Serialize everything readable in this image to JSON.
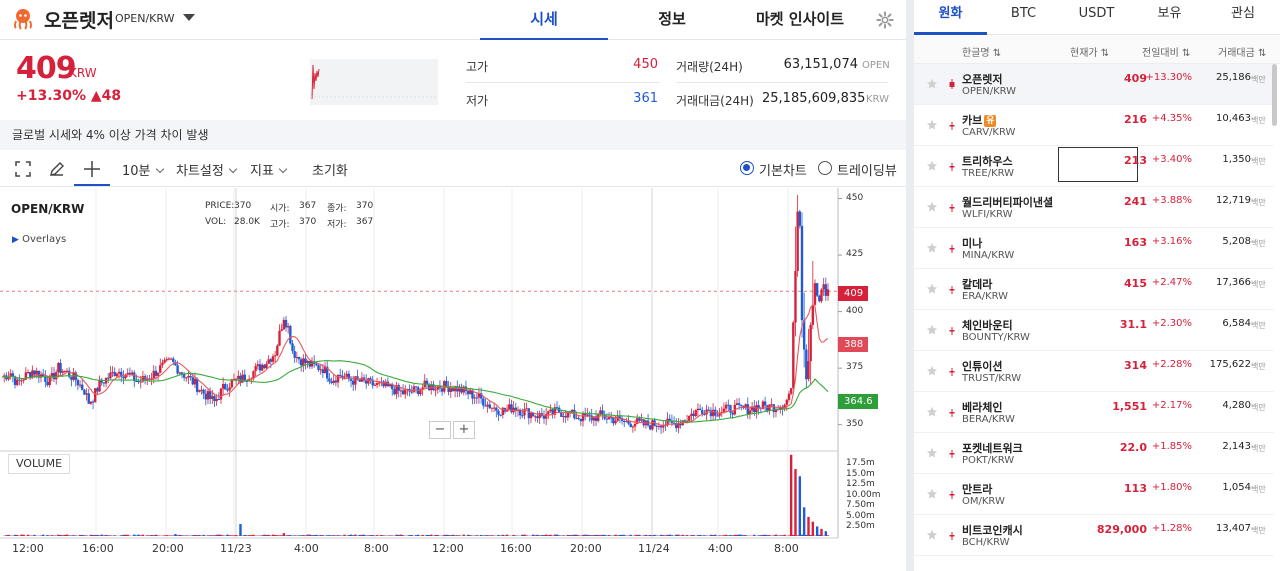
{
  "header": {
    "coin_name": "오픈렛저",
    "coin_pair": "OPEN/KRW",
    "tabs": [
      "시세",
      "정보",
      "마켓 인사이트"
    ],
    "active_tab": "시세"
  },
  "price": {
    "current": "409",
    "unit": "KRW",
    "change": "+13.30% ▲48"
  },
  "stats": {
    "high_label": "고가",
    "high_value": "450",
    "low_label": "저가",
    "low_value": "361",
    "volume_label": "거래량(24H)",
    "volume_value": "63,151,074",
    "volume_unit": "OPEN",
    "amount_label": "거래대금(24H)",
    "amount_value": "25,185,609,835",
    "amount_unit": "KRW"
  },
  "notice": "글로벌 시세와 4% 이상 가격 차이 발생",
  "toolbar": {
    "interval": "10분",
    "chart_settings": "차트설정",
    "indicators": "지표",
    "reset": "초기화",
    "basic_chart": "기본차트",
    "tradingview": "트레이딩뷰"
  },
  "chart": {
    "symbol": "OPEN/KRW",
    "overlays": "Overlays",
    "volume_label": "VOLUME",
    "ohlc": {
      "price_label": "PRICE:",
      "price": "370",
      "open_label": "시가:",
      "open": "367",
      "close_label": "종가:",
      "close": "370",
      "vol_label": "VOL:",
      "vol": "28.0K",
      "high_label": "고가:",
      "high": "370",
      "low_label": "저가:",
      "low": "367"
    },
    "zoom_out": "−",
    "zoom_in": "+",
    "tags": {
      "current": "409",
      "ma_short": "388",
      "ma_long": "364.6"
    }
  },
  "chart_data": {
    "type": "candlestick",
    "y_ticks": [
      "450",
      "425",
      "400",
      "375",
      "350"
    ],
    "ylim": [
      345,
      452
    ],
    "volume_ticks": [
      "17.5m",
      "15.0m",
      "12.5m",
      "10.00m",
      "7.50m",
      "5.00m",
      "2.50m"
    ],
    "x_ticks": [
      "12:00",
      "16:00",
      "20:00",
      "11/23",
      "4:00",
      "8:00",
      "12:00",
      "16:00",
      "20:00",
      "11/24",
      "4:00",
      "8:00"
    ],
    "current_price": 409,
    "ma_short_last": 388,
    "ma_long_last": 364.6,
    "price_path": [
      [
        0,
        371
      ],
      [
        4,
        373
      ],
      [
        7,
        368
      ],
      [
        10,
        371
      ],
      [
        14,
        374
      ],
      [
        18,
        372
      ],
      [
        22,
        369
      ],
      [
        26,
        375
      ],
      [
        30,
        373
      ],
      [
        34,
        370
      ],
      [
        38,
        365
      ],
      [
        40,
        360
      ],
      [
        42,
        362
      ],
      [
        45,
        368
      ],
      [
        49,
        371
      ],
      [
        53,
        374
      ],
      [
        58,
        372
      ],
      [
        63,
        369
      ],
      [
        68,
        371
      ],
      [
        73,
        375
      ],
      [
        78,
        378
      ],
      [
        83,
        373
      ],
      [
        88,
        369
      ],
      [
        93,
        364
      ],
      [
        98,
        360
      ],
      [
        102,
        366
      ],
      [
        106,
        369
      ],
      [
        110,
        370
      ],
      [
        114,
        372
      ],
      [
        118,
        375
      ],
      [
        122,
        378
      ],
      [
        126,
        382
      ],
      [
        128,
        390
      ],
      [
        130,
        398
      ],
      [
        132,
        393
      ],
      [
        134,
        383
      ],
      [
        136,
        380
      ],
      [
        139,
        378
      ],
      [
        143,
        376
      ],
      [
        148,
        375
      ],
      [
        152,
        370
      ],
      [
        156,
        372
      ],
      [
        160,
        370
      ],
      [
        165,
        369
      ],
      [
        170,
        368
      ],
      [
        175,
        367
      ],
      [
        180,
        366
      ],
      [
        185,
        364
      ],
      [
        190,
        365
      ],
      [
        195,
        367
      ],
      [
        200,
        367
      ],
      [
        205,
        367
      ],
      [
        210,
        366
      ],
      [
        215,
        364
      ],
      [
        220,
        362
      ],
      [
        224,
        359
      ],
      [
        228,
        357
      ],
      [
        232,
        356
      ],
      [
        236,
        358
      ],
      [
        240,
        356
      ],
      [
        244,
        355
      ],
      [
        248,
        354
      ],
      [
        252,
        354
      ],
      [
        256,
        356
      ],
      [
        260,
        355
      ],
      [
        264,
        354
      ],
      [
        268,
        353
      ],
      [
        272,
        353
      ],
      [
        276,
        354
      ],
      [
        280,
        353
      ],
      [
        284,
        352
      ],
      [
        288,
        351
      ],
      [
        292,
        351
      ],
      [
        296,
        350
      ],
      [
        300,
        350
      ],
      [
        304,
        351
      ],
      [
        308,
        350
      ],
      [
        312,
        351
      ],
      [
        316,
        353
      ],
      [
        320,
        356
      ],
      [
        324,
        357
      ],
      [
        328,
        356
      ],
      [
        332,
        356
      ],
      [
        336,
        357
      ],
      [
        340,
        357
      ],
      [
        344,
        357
      ],
      [
        348,
        358
      ],
      [
        352,
        358
      ],
      [
        356,
        358
      ],
      [
        360,
        359
      ],
      [
        362,
        361
      ],
      [
        364,
        366
      ],
      [
        366,
        420
      ],
      [
        367,
        445
      ],
      [
        368,
        440
      ],
      [
        369,
        398
      ],
      [
        370,
        385
      ],
      [
        371,
        371
      ],
      [
        372,
        380
      ],
      [
        373,
        395
      ],
      [
        374,
        405
      ],
      [
        375,
        413
      ],
      [
        376,
        408
      ],
      [
        377,
        403
      ],
      [
        378,
        410
      ],
      [
        379,
        412
      ],
      [
        380,
        405
      ],
      [
        381,
        409
      ]
    ],
    "volume_path": [
      [
        30,
        0.3
      ],
      [
        80,
        0.4
      ],
      [
        110,
        2.5
      ],
      [
        130,
        0.6
      ],
      [
        200,
        0.2
      ],
      [
        280,
        0.2
      ],
      [
        340,
        0.3
      ],
      [
        364,
        17.0
      ],
      [
        366,
        14.0
      ],
      [
        368,
        12.5
      ],
      [
        370,
        6.0
      ],
      [
        372,
        4.0
      ],
      [
        374,
        3.0
      ],
      [
        376,
        2.0
      ],
      [
        378,
        1.5
      ],
      [
        380,
        1.0
      ]
    ]
  },
  "market": {
    "tabs": [
      "원화",
      "BTC",
      "USDT",
      "보유",
      "관심"
    ],
    "active_tab": "원화",
    "columns": [
      "한글명 ⇅",
      "현재가 ⇅",
      "전일대비 ⇅",
      "거래대금 ⇅"
    ],
    "unit": "백만",
    "rows": [
      {
        "name": "오픈렛저",
        "pair": "OPEN/KRW",
        "price": "409",
        "change": "+13.30%",
        "amount": "25,186",
        "selected": true
      },
      {
        "name": "카브",
        "pair": "CARV/KRW",
        "price": "216",
        "change": "+4.35%",
        "amount": "10,463",
        "badge": "유"
      },
      {
        "name": "트리하우스",
        "pair": "TREE/KRW",
        "price": "213",
        "change": "+3.40%",
        "amount": "1,350",
        "boxed": true
      },
      {
        "name": "월드리버티파이낸셜",
        "pair": "WLFI/KRW",
        "price": "241",
        "change": "+3.88%",
        "amount": "12,719"
      },
      {
        "name": "미나",
        "pair": "MINA/KRW",
        "price": "163",
        "change": "+3.16%",
        "amount": "5,208"
      },
      {
        "name": "칼데라",
        "pair": "ERA/KRW",
        "price": "415",
        "change": "+2.47%",
        "amount": "17,366"
      },
      {
        "name": "체인바운티",
        "pair": "BOUNTY/KRW",
        "price": "31.1",
        "change": "+2.30%",
        "amount": "6,584"
      },
      {
        "name": "인튜이션",
        "pair": "TRUST/KRW",
        "price": "314",
        "change": "+2.28%",
        "amount": "175,622"
      },
      {
        "name": "베라체인",
        "pair": "BERA/KRW",
        "price": "1,551",
        "change": "+2.17%",
        "amount": "4,280"
      },
      {
        "name": "포켓네트워크",
        "pair": "POKT/KRW",
        "price": "22.0",
        "change": "+1.85%",
        "amount": "2,143"
      },
      {
        "name": "만트라",
        "pair": "OM/KRW",
        "price": "113",
        "change": "+1.80%",
        "amount": "1,054"
      },
      {
        "name": "비트코인캐시",
        "pair": "BCH/KRW",
        "price": "829,000",
        "change": "+1.28%",
        "amount": "13,407"
      }
    ]
  },
  "colors": {
    "up": "#d6213a",
    "down": "#1f5bd6",
    "accent": "#1f51c6",
    "ma_short": "#e8595b",
    "ma_long": "#3aab3a"
  }
}
